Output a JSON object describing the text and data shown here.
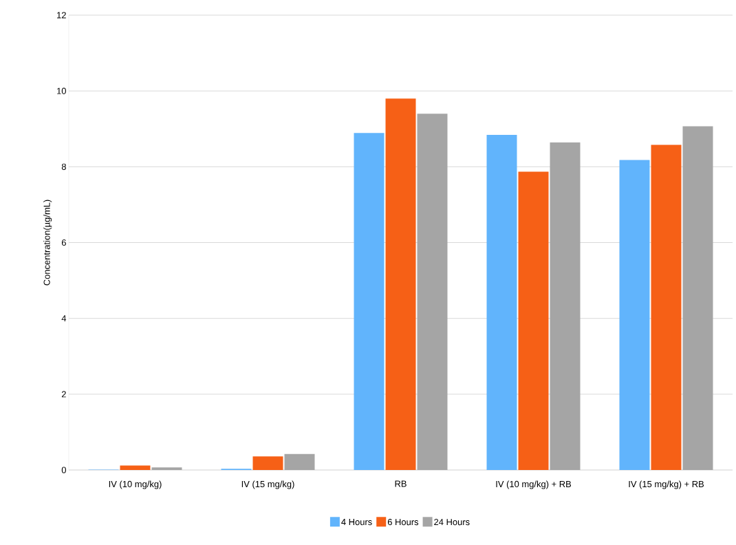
{
  "chart_data": {
    "type": "bar",
    "ylabel": "Concentration(µg/mL)",
    "categories": [
      "IV (10 mg/kg)",
      "IV (15 mg/kg)",
      "RB",
      "IV (10 mg/kg) + RB",
      "IV (15 mg/kg) + RB"
    ],
    "series": [
      {
        "name": "4 Hours",
        "color": "#61b4fc",
        "values": [
          0.01,
          0.03,
          8.89,
          8.84,
          8.18
        ]
      },
      {
        "name": "6 Hours",
        "color": "#f66016",
        "values": [
          0.12,
          0.36,
          9.8,
          7.87,
          8.58
        ]
      },
      {
        "name": "24 Hours",
        "color": "#a5a5a5",
        "values": [
          0.07,
          0.42,
          9.4,
          8.64,
          9.07
        ]
      }
    ],
    "ylim": [
      0,
      12
    ],
    "yticks": [
      0,
      2,
      4,
      6,
      8,
      10,
      12
    ],
    "grid": "y",
    "legend": "bottom"
  }
}
